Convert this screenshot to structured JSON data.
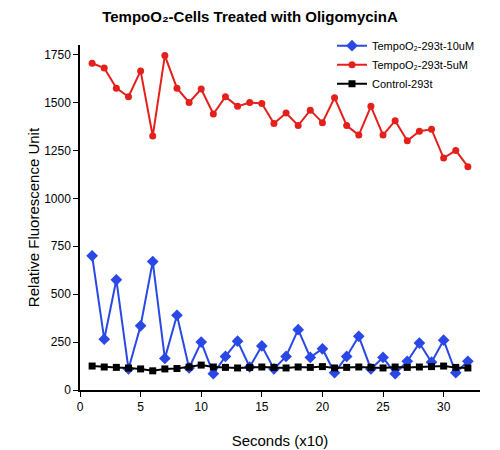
{
  "chart_data": {
    "type": "line",
    "title": "TempoO₂-Cells Treated with OligomycinA",
    "x_label": "Seconds (x10)",
    "y_label": "Relative Fluorescence Unit",
    "x": [
      1,
      2,
      3,
      4,
      5,
      6,
      7,
      8,
      9,
      10,
      11,
      12,
      13,
      14,
      15,
      16,
      17,
      18,
      19,
      20,
      21,
      22,
      23,
      24,
      25,
      26,
      27,
      28,
      29,
      30,
      31,
      32
    ],
    "series": [
      {
        "name": "TempoO₂-293t-10uM",
        "color": "#2a48e6",
        "marker": "diamond",
        "line_style": "solid",
        "values": [
          700,
          265,
          575,
          110,
          335,
          670,
          165,
          390,
          115,
          250,
          85,
          175,
          255,
          120,
          230,
          110,
          175,
          315,
          170,
          215,
          90,
          175,
          280,
          110,
          170,
          85,
          150,
          245,
          145,
          260,
          90,
          150
        ]
      },
      {
        "name": "TempoO₂-293t-5uM",
        "color": "#e5201c",
        "marker": "circle",
        "line_style": "solid",
        "values": [
          1705,
          1680,
          1575,
          1530,
          1665,
          1325,
          1745,
          1575,
          1500,
          1570,
          1440,
          1530,
          1480,
          1500,
          1495,
          1390,
          1445,
          1380,
          1460,
          1395,
          1525,
          1380,
          1330,
          1480,
          1330,
          1405,
          1300,
          1350,
          1360,
          1210,
          1250,
          1165
        ]
      },
      {
        "name": "Control-293t",
        "color": "#000000",
        "marker": "square",
        "line_style": "solid",
        "values": [
          125,
          120,
          118,
          115,
          110,
          100,
          110,
          112,
          120,
          130,
          120,
          118,
          115,
          118,
          120,
          118,
          115,
          120,
          118,
          122,
          115,
          118,
          120,
          118,
          115,
          120,
          118,
          120,
          122,
          125,
          118,
          115
        ]
      }
    ],
    "xlim": [
      0,
      33
    ],
    "xticks": [
      0,
      5,
      10,
      15,
      20,
      25,
      30
    ],
    "ylim": [
      0,
      1800
    ],
    "yticks": [
      0,
      250,
      500,
      750,
      1000,
      1250,
      1500,
      1750
    ],
    "grid": false,
    "legend": "upper right"
  }
}
